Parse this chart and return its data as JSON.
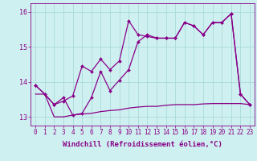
{
  "xlabel": "Windchill (Refroidissement éolien,°C)",
  "background_color": "#cff0f0",
  "grid_color": "#aadada",
  "line_color": "#880088",
  "x_ticks": [
    0,
    1,
    2,
    3,
    4,
    5,
    6,
    7,
    8,
    9,
    10,
    11,
    12,
    13,
    14,
    15,
    16,
    17,
    18,
    19,
    20,
    21,
    22,
    23
  ],
  "ylim": [
    12.75,
    16.25
  ],
  "xlim": [
    -0.5,
    23.5
  ],
  "curve1_x": [
    0,
    1,
    2,
    3,
    4,
    5,
    6,
    7,
    8,
    9,
    10,
    11,
    12,
    13,
    14,
    15,
    16,
    17,
    18,
    19,
    20,
    21,
    22,
    23
  ],
  "curve1_y": [
    13.9,
    13.65,
    13.35,
    13.45,
    13.6,
    14.45,
    14.3,
    14.65,
    14.35,
    14.6,
    15.75,
    15.35,
    15.3,
    15.25,
    15.25,
    15.25,
    15.7,
    15.6,
    15.35,
    15.7,
    15.7,
    15.95,
    13.65,
    13.35
  ],
  "curve2_x": [
    0,
    1,
    2,
    3,
    4,
    5,
    6,
    7,
    8,
    9,
    10,
    11,
    12,
    13,
    14,
    15,
    16,
    17,
    18,
    19,
    20,
    21,
    22,
    23
  ],
  "curve2_y": [
    13.9,
    13.65,
    13.35,
    13.55,
    13.05,
    13.1,
    13.55,
    14.3,
    13.75,
    14.05,
    14.35,
    15.15,
    15.35,
    15.25,
    15.25,
    15.25,
    15.7,
    15.6,
    15.35,
    15.7,
    15.7,
    15.95,
    13.65,
    13.35
  ],
  "curve3_x": [
    0,
    1,
    2,
    3,
    4,
    5,
    6,
    7,
    8,
    9,
    10,
    11,
    12,
    13,
    14,
    15,
    16,
    17,
    18,
    19,
    20,
    21,
    22,
    23
  ],
  "curve3_y": [
    13.65,
    13.65,
    13.0,
    13.0,
    13.05,
    13.08,
    13.1,
    13.15,
    13.18,
    13.2,
    13.25,
    13.28,
    13.3,
    13.3,
    13.33,
    13.35,
    13.35,
    13.35,
    13.37,
    13.38,
    13.38,
    13.38,
    13.38,
    13.35
  ],
  "marker": "D",
  "marker_size": 2.0,
  "linewidth": 0.9,
  "xlabel_fontsize": 6.5,
  "tick_fontsize": 5.5,
  "ytick_fontsize": 6
}
